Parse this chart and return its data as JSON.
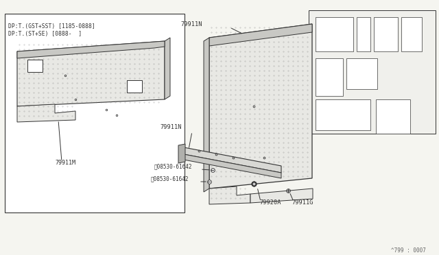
{
  "bg_color": "#f5f5f0",
  "line_color": "#555555",
  "dark_line": "#333333",
  "part_color": "#e8e8e4",
  "stripe_color": "#c8c8c4",
  "box_text_line1": "DP:T.(GST+SST) [1185-0888]",
  "box_text_line2": "DP:T.(ST+SE) [0888-  ]",
  "ref_text": "^799 : 0007",
  "figsize": [
    6.4,
    3.72
  ],
  "dpi": 100
}
